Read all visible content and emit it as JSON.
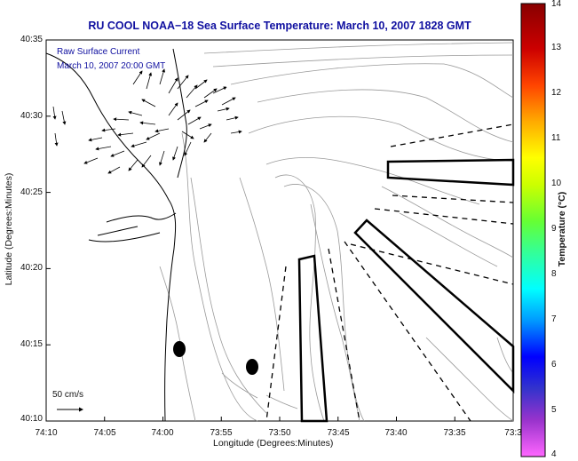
{
  "title": "RU COOL  NOAA−18  Sea Surface Temperature:  March 10, 2007 1828 GMT",
  "overlay": {
    "line1": "Raw Surface Current",
    "line2": "March 10, 2007 20:00 GMT"
  },
  "axes": {
    "xlabel": "Longitude (Degrees:Minutes)",
    "ylabel": "Latitude (Degrees:Minutes)",
    "xticks": [
      "74:10",
      "74:05",
      "74:00",
      "73:55",
      "73:50",
      "73:45",
      "73:40",
      "73:35",
      "73:3"
    ],
    "yticks": [
      "40:35",
      "40:30",
      "40:25",
      "40:20",
      "40:15",
      "40:10"
    ]
  },
  "scale_label": "50 cm/s",
  "colorbar": {
    "title": "Temperature (°C)",
    "ticks": [
      "14",
      "13",
      "12",
      "11",
      "10",
      "9",
      "8",
      "7",
      "6",
      "5",
      "4"
    ],
    "range": [
      4,
      14
    ],
    "colors": [
      "#ff66ff",
      "#3333cc",
      "#0000ff",
      "#0099ff",
      "#00ffff",
      "#33ff99",
      "#66ff33",
      "#ccff00",
      "#ffff00",
      "#ffaa00",
      "#ff4400",
      "#cc0000",
      "#880000"
    ]
  }
}
